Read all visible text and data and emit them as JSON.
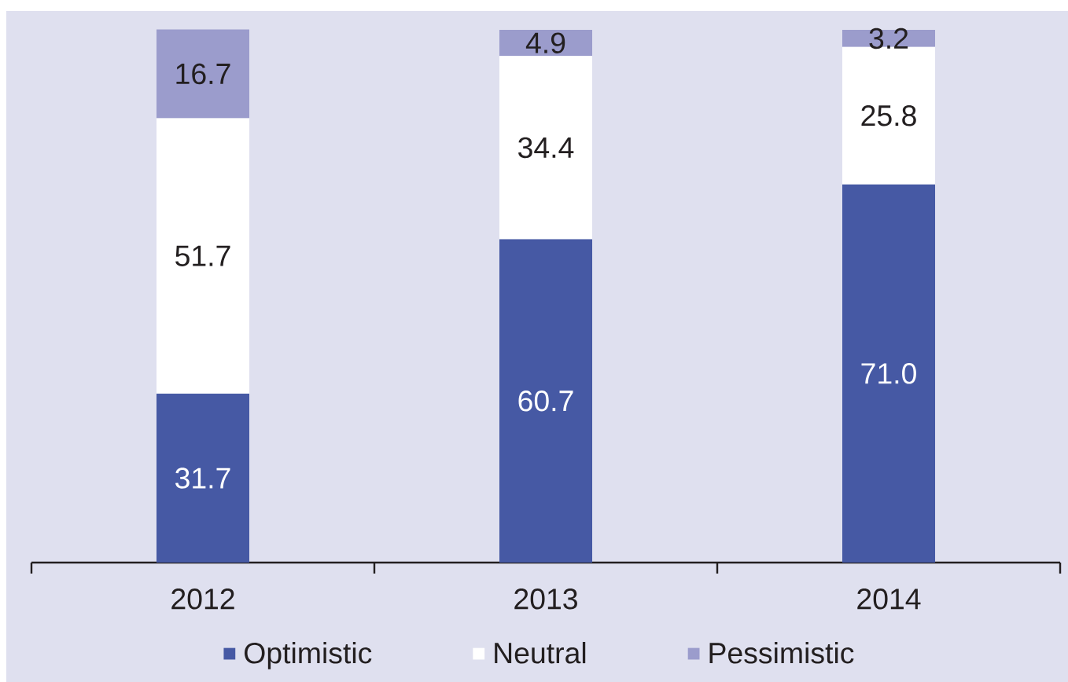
{
  "chart_data": {
    "type": "bar",
    "stacked": true,
    "categories": [
      "2012",
      "2013",
      "2014"
    ],
    "series": [
      {
        "name": "Optimistic",
        "color": "#4659a4",
        "values": [
          31.7,
          60.7,
          71.0
        ],
        "value_labels": [
          "31.7",
          "60.7",
          "71.0"
        ]
      },
      {
        "name": "Neutral",
        "color": "#ffffff",
        "values": [
          51.7,
          34.4,
          25.8
        ],
        "value_labels": [
          "51.7",
          "34.4",
          "25.8"
        ]
      },
      {
        "name": "Pessimistic",
        "color": "#9b9ccc",
        "values": [
          16.7,
          4.9,
          3.2
        ],
        "value_labels": [
          "16.7",
          "4.9",
          "3.2"
        ]
      }
    ],
    "ylim": [
      0,
      100.1
    ],
    "tick_labels": "x",
    "legend": "bottom"
  }
}
